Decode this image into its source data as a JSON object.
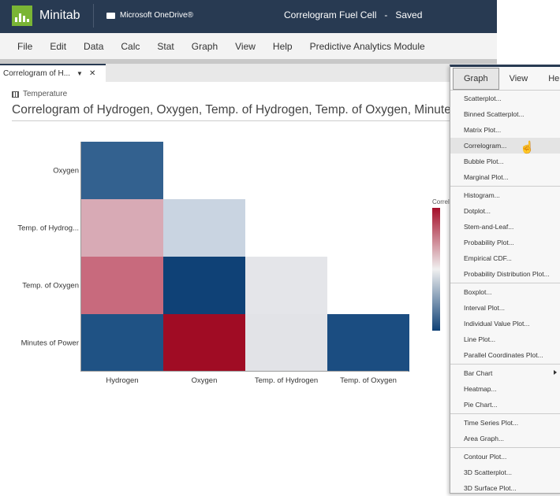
{
  "header": {
    "app_name": "Minitab",
    "storage": "Microsoft OneDrive®",
    "doc_title": "Correlogram Fuel Cell   -   Saved"
  },
  "menubar": [
    "File",
    "Edit",
    "Data",
    "Calc",
    "Stat",
    "Graph",
    "View",
    "Help",
    "Predictive Analytics Module"
  ],
  "tab": {
    "label": "Correlogram of H...",
    "dropdown": "▼",
    "close": "✕"
  },
  "worksheet": "Temperature",
  "graph_title": "Correlogram of Hydrogen, Oxygen, Temp. of Hydrogen, Temp. of Oxygen, Minutes of P",
  "legend_title": "Correl",
  "chart_data": {
    "type": "heatmap",
    "rows": [
      "Oxygen",
      "Temp. of Hydrog...",
      "Temp. of Oxygen",
      "Minutes of Power"
    ],
    "columns": [
      "Hydrogen",
      "Oxygen",
      "Temp. of Hydrogen",
      "Temp. of Oxygen"
    ],
    "colors": [
      [
        "#33618f",
        null,
        null,
        null
      ],
      [
        "#d8aab5",
        "#c9d4e1",
        null,
        null
      ],
      [
        "#c86a7d",
        "#0f4176",
        "#e4e5e9",
        null
      ],
      [
        "#1f5284",
        "#a00c24",
        "#e2e3e7",
        "#1b4d81"
      ]
    ],
    "colorscale": [
      "#a50f2a",
      "#f0f0f0",
      "#0f4176"
    ]
  },
  "dropdown": {
    "tabs": [
      "Graph",
      "View",
      "Help"
    ],
    "groups": [
      [
        "Scatterplot...",
        "Binned Scatterplot...",
        "Matrix Plot...",
        "Correlogram...",
        "Bubble Plot...",
        "Marginal Plot..."
      ],
      [
        "Histogram...",
        "Dotplot...",
        "Stem-and-Leaf...",
        "Probability Plot...",
        "Empirical CDF...",
        "Probability Distribution Plot..."
      ],
      [
        "Boxplot...",
        "Interval Plot...",
        "Individual Value Plot...",
        "Line Plot...",
        "Parallel Coordinates Plot..."
      ],
      [
        "Bar Chart",
        "Heatmap...",
        "Pie Chart..."
      ],
      [
        "Time Series Plot...",
        "Area Graph..."
      ],
      [
        "Contour Plot...",
        "3D Scatterplot...",
        "3D Surface Plot..."
      ]
    ],
    "highlighted": "Correlogram..."
  }
}
